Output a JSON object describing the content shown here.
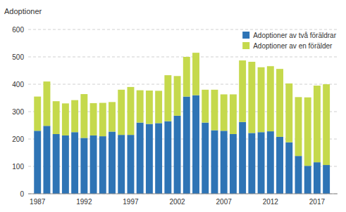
{
  "chart_data": {
    "type": "bar",
    "stacked": true,
    "ylabel": "Adoptioner",
    "x": [
      1987,
      1988,
      1989,
      1990,
      1991,
      1992,
      1993,
      1994,
      1995,
      1996,
      1997,
      1998,
      1999,
      2000,
      2001,
      2002,
      2003,
      2004,
      2005,
      2006,
      2007,
      2008,
      2009,
      2010,
      2011,
      2012,
      2013,
      2014,
      2015,
      2016,
      2017,
      2018
    ],
    "series": [
      {
        "name": "Adoptioner av två föräldrar",
        "color": "#2E74B5",
        "values": [
          230,
          248,
          218,
          213,
          225,
          204,
          213,
          210,
          227,
          215,
          215,
          260,
          255,
          258,
          265,
          285,
          355,
          360,
          260,
          232,
          230,
          218,
          262,
          222,
          225,
          228,
          208,
          188,
          138,
          102,
          115,
          105
        ]
      },
      {
        "name": "Adoptioner av en förälder",
        "color": "#C5D94C",
        "values": [
          125,
          162,
          120,
          117,
          117,
          160,
          118,
          122,
          108,
          165,
          175,
          118,
          122,
          118,
          168,
          145,
          145,
          155,
          120,
          148,
          133,
          145,
          225,
          260,
          237,
          238,
          248,
          215,
          215,
          250,
          280,
          295
        ]
      }
    ],
    "xlim": [
      1986.0,
      2019.2
    ],
    "xticks": [
      1987,
      1992,
      1997,
      2002,
      2007,
      2012,
      2017
    ],
    "ylim": [
      0,
      600
    ],
    "yticks": [
      0,
      100,
      200,
      300,
      400,
      500,
      600
    ],
    "grid": true,
    "legend": "top-right"
  }
}
